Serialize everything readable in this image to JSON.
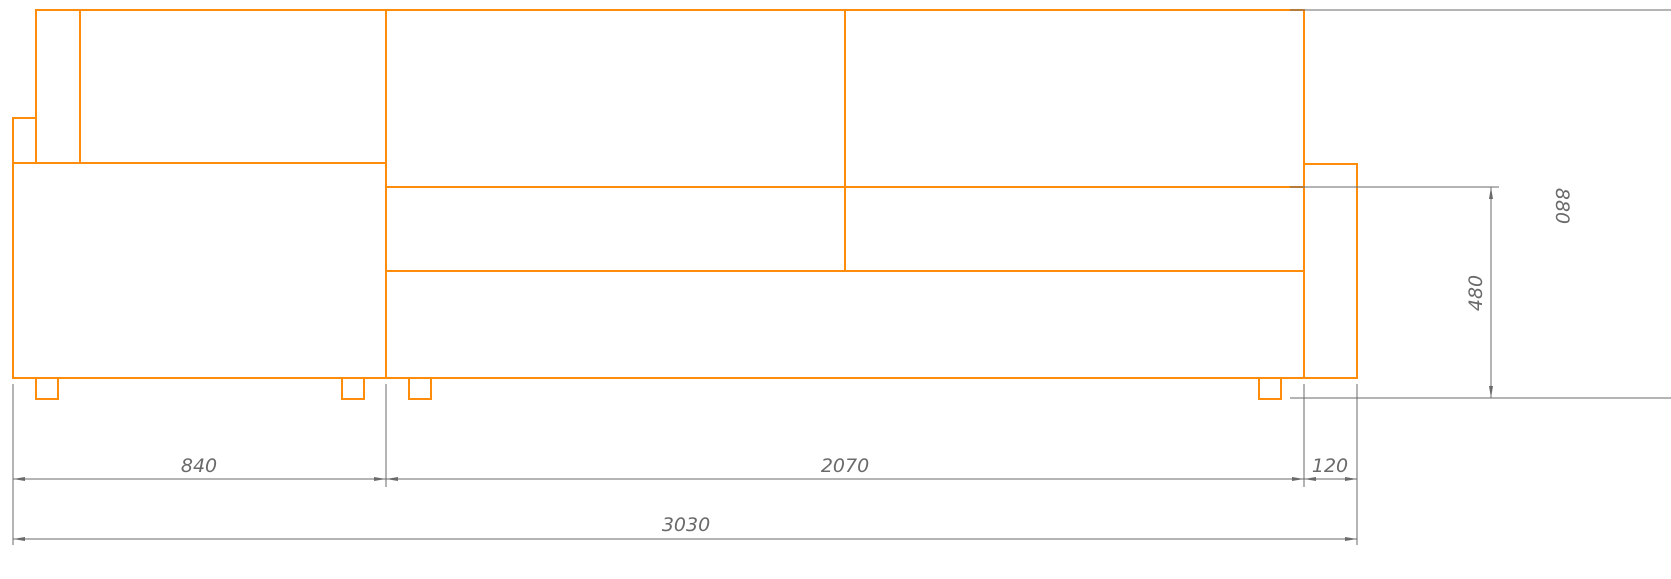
{
  "drawing": {
    "colors": {
      "outline": "#ff8c0a",
      "dimension": "#6a6a6a",
      "background": "#ffffff"
    },
    "dimensions": {
      "module_left_width": "840",
      "module_middle_width": "2070",
      "armrest_width": "120",
      "overall_width": "3030",
      "seat_height": "480",
      "overall_height": "880"
    }
  }
}
